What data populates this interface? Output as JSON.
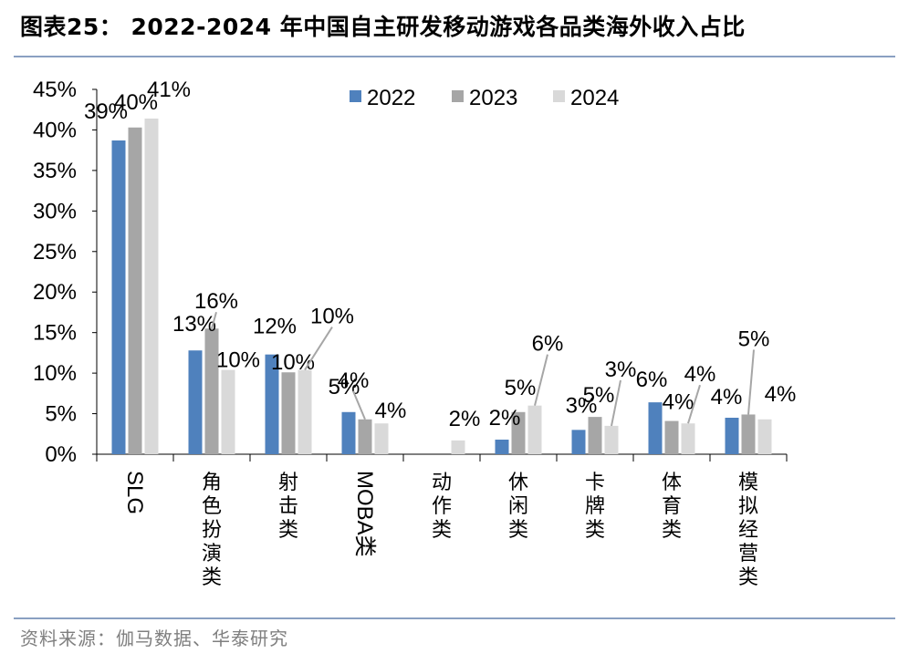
{
  "title": "图表25：  2022-2024 年中国自主研发移动游戏各品类海外收入占比",
  "source": "资料来源：伽马数据、华泰研究",
  "colors": {
    "2022": "#4f81bd",
    "2023": "#a6a6a6",
    "2024": "#d9d9d9",
    "axis": "#000000",
    "leader": "#a6a6a6"
  },
  "chart_data": {
    "type": "bar",
    "title": "2022-2024 年中国自主研发移动游戏各品类海外收入占比",
    "categories": [
      "SLG",
      "角色扮演类",
      "射击类",
      "MOBA类",
      "动作类",
      "休闲类",
      "卡牌类",
      "体育类",
      "模拟经营类"
    ],
    "series": [
      {
        "name": "2022",
        "values": [
          38.7,
          12.8,
          12.3,
          5.2,
          null,
          1.8,
          3.0,
          6.4,
          4.5
        ],
        "labels": [
          "39%",
          "13%",
          "12%",
          "5%",
          "",
          "2%",
          "3%",
          "6%",
          "4%"
        ]
      },
      {
        "name": "2023",
        "values": [
          40.3,
          15.5,
          10.1,
          4.3,
          null,
          5.2,
          4.6,
          4.1,
          4.9
        ],
        "labels": [
          "40%",
          "16%",
          "10%",
          "4%",
          "",
          "5%",
          "5%",
          "4%",
          "5%"
        ]
      },
      {
        "name": "2024",
        "values": [
          41.4,
          10.4,
          10.4,
          3.8,
          1.7,
          6.0,
          3.5,
          3.8,
          4.3
        ],
        "labels": [
          "41%",
          "10%",
          "10%",
          "4%",
          "2%",
          "6%",
          "3%",
          "4%",
          "4%"
        ]
      }
    ],
    "y_ticks": [
      "0%",
      "5%",
      "10%",
      "15%",
      "20%",
      "25%",
      "30%",
      "35%",
      "40%",
      "45%"
    ],
    "ylim": [
      0,
      45
    ],
    "xlabel": "",
    "ylabel": "",
    "legend": [
      "2022",
      "2023",
      "2024"
    ],
    "legend_position": "top-right",
    "grid": false
  }
}
